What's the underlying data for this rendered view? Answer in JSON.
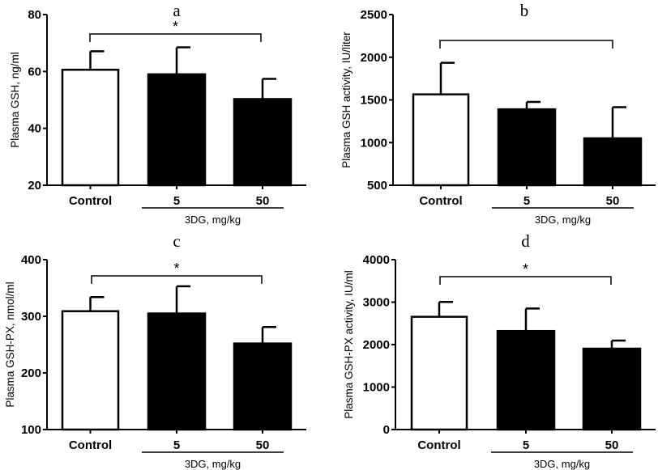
{
  "chart_data": [
    {
      "type": "bar",
      "panel": "a",
      "categories": [
        "Control",
        "5",
        "50"
      ],
      "values": [
        60.6,
        59.0,
        50.3
      ],
      "error_upper": [
        67.1,
        68.5,
        57.4
      ],
      "ylabel": "Plasma GSH, ng/ml",
      "ylim": [
        20,
        80
      ],
      "yticks": [
        "20",
        "40",
        "60",
        "80"
      ],
      "ytick_values": [
        20,
        40,
        60,
        80
      ],
      "group_label": "3DG, mg/kg",
      "significance": "*",
      "bar_colors": [
        "#ffffff",
        "#000000",
        "#000000"
      ]
    },
    {
      "type": "bar",
      "panel": "b",
      "categories": [
        "Control",
        "5",
        "50"
      ],
      "values": [
        1565,
        1390,
        1050
      ],
      "error_upper": [
        1935,
        1476,
        1415
      ],
      "ylabel": "Plasma GSH activity, IU/liter",
      "ylim": [
        500,
        2500
      ],
      "yticks": [
        "500",
        "1000",
        "1500",
        "2000",
        "2500"
      ],
      "ytick_values": [
        500,
        1000,
        1500,
        2000,
        2500
      ],
      "group_label": "3DG, mg/kg",
      "significance": "",
      "bar_colors": [
        "#ffffff",
        "#000000",
        "#000000"
      ]
    },
    {
      "type": "bar",
      "panel": "c",
      "categories": [
        "Control",
        "5",
        "50"
      ],
      "values": [
        309,
        305,
        252
      ],
      "error_upper": [
        334,
        353,
        281
      ],
      "ylabel": "Plasma GSH-PX, nmol/ml",
      "ylim": [
        100,
        400
      ],
      "yticks": [
        "100",
        "200",
        "300",
        "400"
      ],
      "ytick_values": [
        100,
        200,
        300,
        400
      ],
      "group_label": "3DG, mg/kg",
      "significance": "*",
      "bar_colors": [
        "#ffffff",
        "#000000",
        "#000000"
      ]
    },
    {
      "type": "bar",
      "panel": "d",
      "categories": [
        "Control",
        "5",
        "50"
      ],
      "values": [
        2655,
        2320,
        1905
      ],
      "error_upper": [
        3005,
        2850,
        2095
      ],
      "ylabel": "Plasma GSH-PX activity, IU/ml",
      "ylim": [
        0,
        4000
      ],
      "yticks": [
        "0",
        "1000",
        "2000",
        "3000",
        "4000"
      ],
      "ytick_values": [
        0,
        1000,
        2000,
        3000,
        4000
      ],
      "group_label": "3DG, mg/kg",
      "significance": "*",
      "bar_colors": [
        "#ffffff",
        "#000000",
        "#000000"
      ]
    }
  ]
}
